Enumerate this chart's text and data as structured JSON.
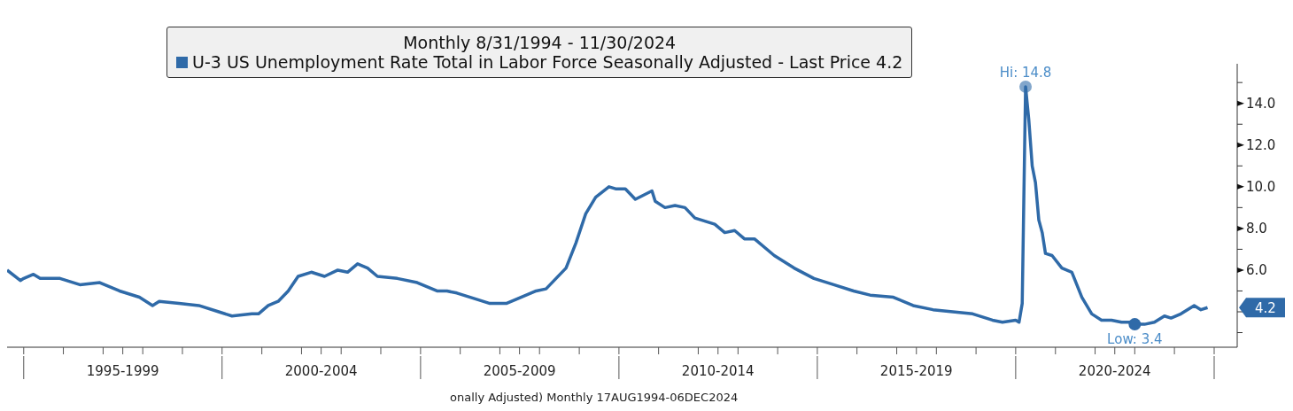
{
  "chart_data": {
    "type": "line",
    "legend_title": "Monthly 8/31/1994 - 11/30/2024",
    "x": [
      "1994-08",
      "1994-12",
      "1995-01",
      "1995-04",
      "1995-06",
      "1995-12",
      "1996-06",
      "1996-12",
      "1997-06",
      "1997-12",
      "1998-04",
      "1998-06",
      "1998-12",
      "1999-06",
      "1999-12",
      "2000-04",
      "2000-10",
      "2000-12",
      "2001-03",
      "2001-06",
      "2001-09",
      "2001-12",
      "2002-04",
      "2002-08",
      "2002-12",
      "2003-03",
      "2003-06",
      "2003-09",
      "2003-12",
      "2004-06",
      "2004-12",
      "2005-06",
      "2005-09",
      "2005-12",
      "2006-06",
      "2006-10",
      "2006-12",
      "2007-03",
      "2007-06",
      "2007-12",
      "2008-03",
      "2008-06",
      "2008-09",
      "2008-12",
      "2009-03",
      "2009-06",
      "2009-10",
      "2009-12",
      "2010-03",
      "2010-06",
      "2010-11",
      "2010-12",
      "2011-03",
      "2011-06",
      "2011-09",
      "2011-12",
      "2012-06",
      "2012-09",
      "2012-12",
      "2013-03",
      "2013-06",
      "2013-12",
      "2014-06",
      "2014-12",
      "2015-06",
      "2015-12",
      "2016-05",
      "2016-12",
      "2017-06",
      "2017-12",
      "2018-06",
      "2018-12",
      "2019-06",
      "2019-09",
      "2020-01",
      "2020-02",
      "2020-03",
      "2020-04",
      "2020-05",
      "2020-06",
      "2020-07",
      "2020-08",
      "2020-09",
      "2020-10",
      "2020-12",
      "2021-03",
      "2021-06",
      "2021-09",
      "2021-12",
      "2022-03",
      "2022-06",
      "2022-09",
      "2022-12",
      "2023-01",
      "2023-04",
      "2023-07",
      "2023-10",
      "2023-12",
      "2024-03",
      "2024-07",
      "2024-09",
      "2024-11"
    ],
    "series": [
      {
        "name": "U-3 US Unemployment Rate Total in Labor Force Seasonally Adjusted - Last Price 4.2",
        "color": "#2f6aa8",
        "values": [
          6.0,
          5.5,
          5.6,
          5.8,
          5.6,
          5.6,
          5.3,
          5.4,
          5.0,
          4.7,
          4.3,
          4.5,
          4.4,
          4.3,
          4.0,
          3.8,
          3.9,
          3.9,
          4.3,
          4.5,
          5.0,
          5.7,
          5.9,
          5.7,
          6.0,
          5.9,
          6.3,
          6.1,
          5.7,
          5.6,
          5.4,
          5.0,
          5.0,
          4.9,
          4.6,
          4.4,
          4.4,
          4.4,
          4.6,
          5.0,
          5.1,
          5.6,
          6.1,
          7.3,
          8.7,
          9.5,
          10.0,
          9.9,
          9.9,
          9.4,
          9.8,
          9.3,
          9.0,
          9.1,
          9.0,
          8.5,
          8.2,
          7.8,
          7.9,
          7.5,
          7.5,
          6.7,
          6.1,
          5.6,
          5.3,
          5.0,
          4.8,
          4.7,
          4.3,
          4.1,
          4.0,
          3.9,
          3.6,
          3.5,
          3.6,
          3.5,
          4.4,
          14.8,
          13.2,
          11.0,
          10.2,
          8.4,
          7.8,
          6.8,
          6.7,
          6.1,
          5.9,
          4.7,
          3.9,
          3.6,
          3.6,
          3.5,
          3.5,
          3.4,
          3.4,
          3.5,
          3.8,
          3.7,
          3.9,
          4.3,
          4.1,
          4.2
        ]
      }
    ],
    "xlim": [
      "1994-08",
      "2025-08"
    ],
    "xticks": [
      {
        "value": "1995-01",
        "label": null
      },
      {
        "value": "1996-01",
        "label": null
      },
      {
        "value": "1997-01",
        "label": null
      },
      {
        "value": "1998-01",
        "label": null
      },
      {
        "value": "1999-01",
        "label": null
      },
      {
        "value": "2000-01",
        "label": null
      },
      {
        "value": "2001-01",
        "label": null
      },
      {
        "value": "2002-01",
        "label": null
      },
      {
        "value": "2003-01",
        "label": null
      },
      {
        "value": "2004-01",
        "label": null
      },
      {
        "value": "2005-01",
        "label": null
      },
      {
        "value": "2006-01",
        "label": null
      },
      {
        "value": "2007-01",
        "label": null
      },
      {
        "value": "2008-01",
        "label": null
      },
      {
        "value": "2009-01",
        "label": null
      },
      {
        "value": "2010-01",
        "label": null
      },
      {
        "value": "2011-01",
        "label": null
      },
      {
        "value": "2012-01",
        "label": null
      },
      {
        "value": "2013-01",
        "label": null
      },
      {
        "value": "2014-01",
        "label": null
      },
      {
        "value": "2015-01",
        "label": null
      },
      {
        "value": "2016-01",
        "label": null
      },
      {
        "value": "2017-01",
        "label": null
      },
      {
        "value": "2018-01",
        "label": null
      },
      {
        "value": "2019-01",
        "label": null
      },
      {
        "value": "2020-01",
        "label": null
      },
      {
        "value": "2021-01",
        "label": null
      },
      {
        "value": "2022-01",
        "label": null
      },
      {
        "value": "2023-01",
        "label": null
      },
      {
        "value": "2024-01",
        "label": null
      },
      {
        "value": "2025-01",
        "label": null
      },
      {
        "value": "1997-07",
        "label": "1995-1999"
      },
      {
        "value": "2002-07",
        "label": "2000-2004"
      },
      {
        "value": "2007-07",
        "label": "2005-2009"
      },
      {
        "value": "2012-07",
        "label": "2010-2014"
      },
      {
        "value": "2017-07",
        "label": "2015-2019"
      },
      {
        "value": "2022-07",
        "label": "2020-2024"
      }
    ],
    "ylim": [
      2.3,
      15.9
    ],
    "yticks": [
      {
        "value": 3,
        "label": null
      },
      {
        "value": 4,
        "label": null
      },
      {
        "value": 5,
        "label": null
      },
      {
        "value": 6,
        "label": "6.0"
      },
      {
        "value": 7,
        "label": null
      },
      {
        "value": 8,
        "label": "8.0"
      },
      {
        "value": 9,
        "label": null
      },
      {
        "value": 10,
        "label": "10.0"
      },
      {
        "value": 11,
        "label": null
      },
      {
        "value": 12,
        "label": "12.0"
      },
      {
        "value": 13,
        "label": null
      },
      {
        "value": 14,
        "label": "14.0"
      },
      {
        "value": 15,
        "label": null
      }
    ],
    "annotations": [
      {
        "text": "Hi: 14.8",
        "x": "2020-04",
        "y": 14.8
      },
      {
        "text": "Low: 3.4",
        "x": "2023-01",
        "y": 3.4
      },
      "4.2",
      "onally Adjusted) Monthly 17AUG1994-06DEC2024"
    ],
    "grid": false,
    "legend": "top",
    "marker": "none",
    "line_style": "solid"
  }
}
